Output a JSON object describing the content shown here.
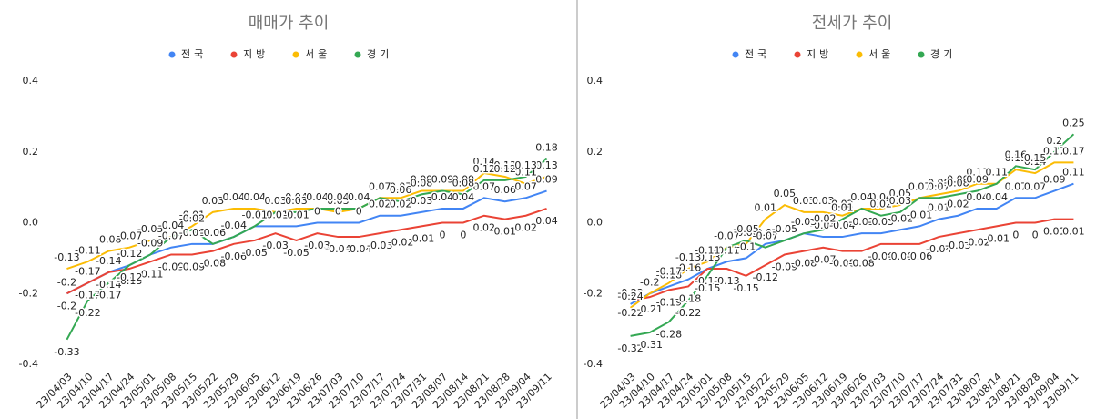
{
  "chart_data": [
    {
      "type": "line",
      "title": "매매가 추이",
      "categories": [
        "23/04/03",
        "23/04/10",
        "23/04/17",
        "23/04/24",
        "23/05/01",
        "23/05/08",
        "23/05/15",
        "23/05/22",
        "23/05/29",
        "23/06/05",
        "23/06/12",
        "23/06/19",
        "23/06/26",
        "23/07/03",
        "23/07/10",
        "23/07/17",
        "23/07/24",
        "23/07/31",
        "23/08/07",
        "23/08/14",
        "23/08/21",
        "23/08/28",
        "23/09/04",
        "23/09/11"
      ],
      "series": [
        {
          "name": "전국",
          "color": "#4285f4",
          "values": [
            -0.2,
            -0.17,
            -0.14,
            -0.12,
            -0.09,
            -0.07,
            -0.06,
            -0.06,
            -0.04,
            -0.01,
            -0.01,
            -0.01,
            0,
            0,
            0,
            0.02,
            0.02,
            0.03,
            0.04,
            0.04,
            0.07,
            0.06,
            0.07,
            0.09
          ]
        },
        {
          "name": "지방",
          "color": "#ea4335",
          "values": [
            -0.2,
            -0.17,
            -0.14,
            -0.13,
            -0.11,
            -0.09,
            -0.09,
            -0.08,
            -0.06,
            -0.05,
            -0.03,
            -0.05,
            -0.03,
            -0.04,
            -0.04,
            -0.03,
            -0.02,
            -0.01,
            0,
            0,
            0.02,
            0.01,
            0.02,
            0.04
          ]
        },
        {
          "name": "서울",
          "color": "#fbbc04",
          "values": [
            -0.13,
            -0.11,
            -0.08,
            -0.07,
            -0.05,
            -0.04,
            -0.01,
            0.03,
            0.04,
            0.04,
            0.03,
            0.04,
            0.04,
            0.03,
            0.04,
            0.07,
            0.07,
            0.09,
            0.09,
            0.09,
            0.14,
            0.13,
            0.11,
            0.13
          ]
        },
        {
          "name": "경기",
          "color": "#34a853",
          "values": [
            -0.33,
            -0.22,
            -0.17,
            -0.12,
            -0.09,
            -0.04,
            -0.02,
            -0.06,
            -0.04,
            -0.01,
            0.03,
            0.03,
            0.04,
            0.04,
            0.04,
            0.07,
            0.06,
            0.08,
            0.09,
            0.08,
            0.12,
            0.12,
            0.13,
            0.18
          ]
        }
      ],
      "ylim": [
        -0.4,
        0.4
      ],
      "yticks": [
        0.4,
        0.2,
        {
          "value": 0,
          "label": "0.0"
        },
        -0.2,
        -0.4
      ]
    },
    {
      "type": "line",
      "title": "전세가 추이",
      "categories": [
        "23/04/03",
        "23/04/10",
        "23/04/17",
        "23/04/24",
        "23/05/01",
        "23/05/08",
        "23/05/15",
        "23/05/22",
        "23/05/29",
        "23/06/05",
        "23/06/12",
        "23/06/19",
        "23/06/26",
        "23/07/03",
        "23/07/10",
        "23/07/17",
        "23/07/24",
        "23/07/31",
        "23/08/07",
        "23/08/14",
        "23/08/21",
        "23/08/28",
        "23/09/04",
        "23/09/11"
      ],
      "series": [
        {
          "name": "전국",
          "color": "#4285f4",
          "values": [
            -0.23,
            -0.2,
            -0.18,
            -0.16,
            -0.13,
            -0.11,
            -0.1,
            -0.06,
            -0.05,
            -0.03,
            -0.04,
            -0.04,
            -0.03,
            -0.03,
            -0.02,
            -0.01,
            0.01,
            0.02,
            0.04,
            0.04,
            0.07,
            0.07,
            0.09,
            0.11
          ]
        },
        {
          "name": "지방",
          "color": "#ea4335",
          "values": [
            -0.22,
            -0.21,
            -0.19,
            -0.18,
            -0.13,
            -0.13,
            -0.15,
            -0.12,
            -0.09,
            -0.08,
            -0.07,
            -0.08,
            -0.08,
            -0.06,
            -0.06,
            -0.06,
            -0.04,
            -0.03,
            -0.02,
            -0.01,
            0,
            0,
            0.01,
            0.01
          ]
        },
        {
          "name": "서울",
          "color": "#fbbc04",
          "values": [
            -0.24,
            -0.2,
            -0.17,
            -0.13,
            -0.11,
            -0.07,
            -0.06,
            0.01,
            0.05,
            0.03,
            0.03,
            0.02,
            0.04,
            0.04,
            0.05,
            0.07,
            0.08,
            0.09,
            0.11,
            0.11,
            0.15,
            0.14,
            0.17,
            0.17
          ]
        },
        {
          "name": "경기",
          "color": "#34a853",
          "values": [
            -0.32,
            -0.31,
            -0.28,
            -0.22,
            -0.15,
            -0.07,
            -0.05,
            -0.07,
            -0.05,
            -0.03,
            -0.02,
            0.01,
            0.04,
            0.02,
            0.03,
            0.07,
            0.07,
            0.08,
            0.09,
            0.11,
            0.16,
            0.15,
            0.2,
            0.25
          ]
        }
      ],
      "ylim": [
        -0.4,
        0.4
      ],
      "yticks": [
        0.4,
        0.2,
        {
          "value": 0,
          "label": "0.0"
        },
        -0.2,
        -0.4
      ]
    }
  ]
}
